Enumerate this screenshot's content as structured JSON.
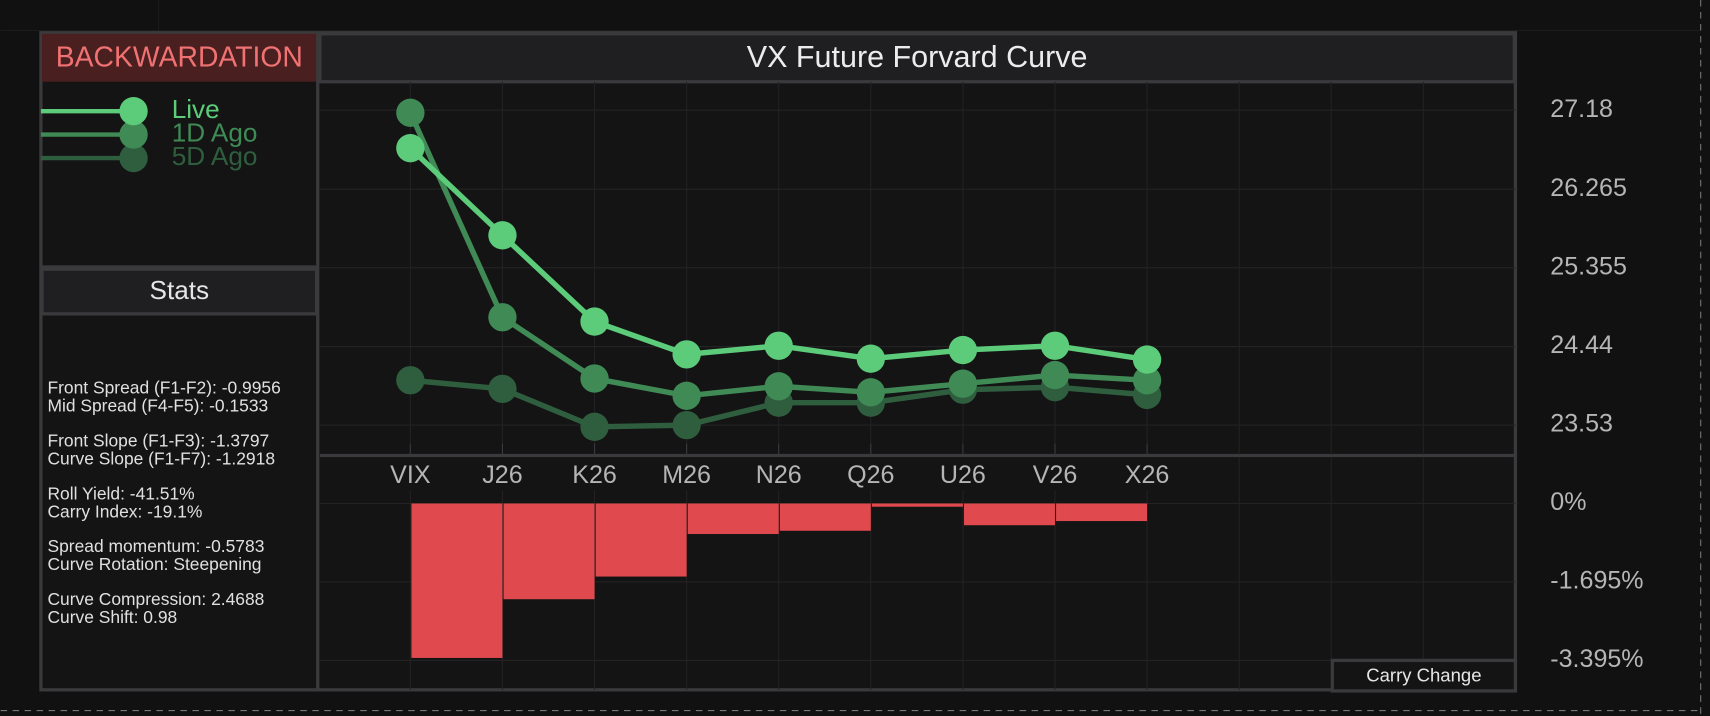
{
  "badge": "BACKWARDATION",
  "stats_title": "Stats",
  "stats": [
    [
      "Front Spread (F1-F2):  -0.9956",
      "Mid Spread (F4-F5): -0.1533"
    ],
    [
      "Front Slope (F1-F3): -1.3797",
      "Curve Slope (F1-F7): -1.2918"
    ],
    [
      "Roll Yield: -41.51%",
      "Carry Index: -19.1%"
    ],
    [
      "Spread momentum: -0.5783",
      "Curve Rotation: Steepening"
    ],
    [
      "Curve Compression: 2.4688",
      "Curve Shift: 0.98"
    ]
  ],
  "chart_data": [
    {
      "type": "line",
      "title": "VX Future Forvard Curve",
      "categories": [
        "VIX",
        "J26",
        "K26",
        "M26",
        "N26",
        "Q26",
        "U26",
        "V26",
        "X26"
      ],
      "series": [
        {
          "name": "Live",
          "color": "#5ccc7a",
          "values": [
            26.74,
            25.73,
            24.73,
            24.35,
            24.45,
            24.3,
            24.4,
            24.45,
            24.29
          ]
        },
        {
          "name": "1D Ago",
          "color": "#3f8a55",
          "values": [
            27.15,
            24.78,
            24.07,
            23.87,
            23.98,
            23.91,
            24.01,
            24.11,
            24.05
          ]
        },
        {
          "name": "5D Ago",
          "color": "#2f5e3e",
          "values": [
            24.05,
            23.95,
            23.51,
            23.53,
            23.79,
            23.79,
            23.94,
            23.97,
            23.88
          ]
        }
      ],
      "ylim": [
        23.19,
        27.51
      ],
      "yticks": [
        27.18,
        26.265,
        25.355,
        24.44,
        23.53
      ],
      "grid": true
    },
    {
      "type": "bar",
      "categories": [
        "VIX",
        "J26",
        "K26",
        "M26",
        "N26",
        "Q26",
        "U26",
        "V26",
        "X26"
      ],
      "series": [
        {
          "name": "Carry Change",
          "color": "#e0494d",
          "values": [
            -3.34,
            -2.07,
            -1.58,
            -0.66,
            -0.59,
            -0.07,
            -0.47,
            -0.38,
            null
          ]
        }
      ],
      "ylim": [
        -4.03,
        0.99
      ],
      "yticks": [
        {
          "value": 0,
          "label": "0%"
        },
        {
          "value": -1.695,
          "label": "-1.695%"
        },
        {
          "value": -3.395,
          "label": "-3.395%"
        }
      ],
      "grid": true
    }
  ]
}
